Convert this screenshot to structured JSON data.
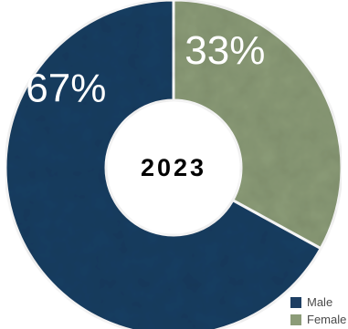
{
  "chart_data": {
    "type": "pie",
    "variant": "donut",
    "center_label": "2023",
    "slices": [
      {
        "label": "Female",
        "value": 33,
        "display": "33%",
        "color": "#8c9c78"
      },
      {
        "label": "Male",
        "value": 67,
        "display": "67%",
        "color": "#1e3f63"
      }
    ],
    "legend": {
      "placement": "bottom-right",
      "items": [
        {
          "label": "Male",
          "color": "#1e3f63"
        },
        {
          "label": "Female",
          "color": "#8c9c78"
        }
      ]
    }
  }
}
